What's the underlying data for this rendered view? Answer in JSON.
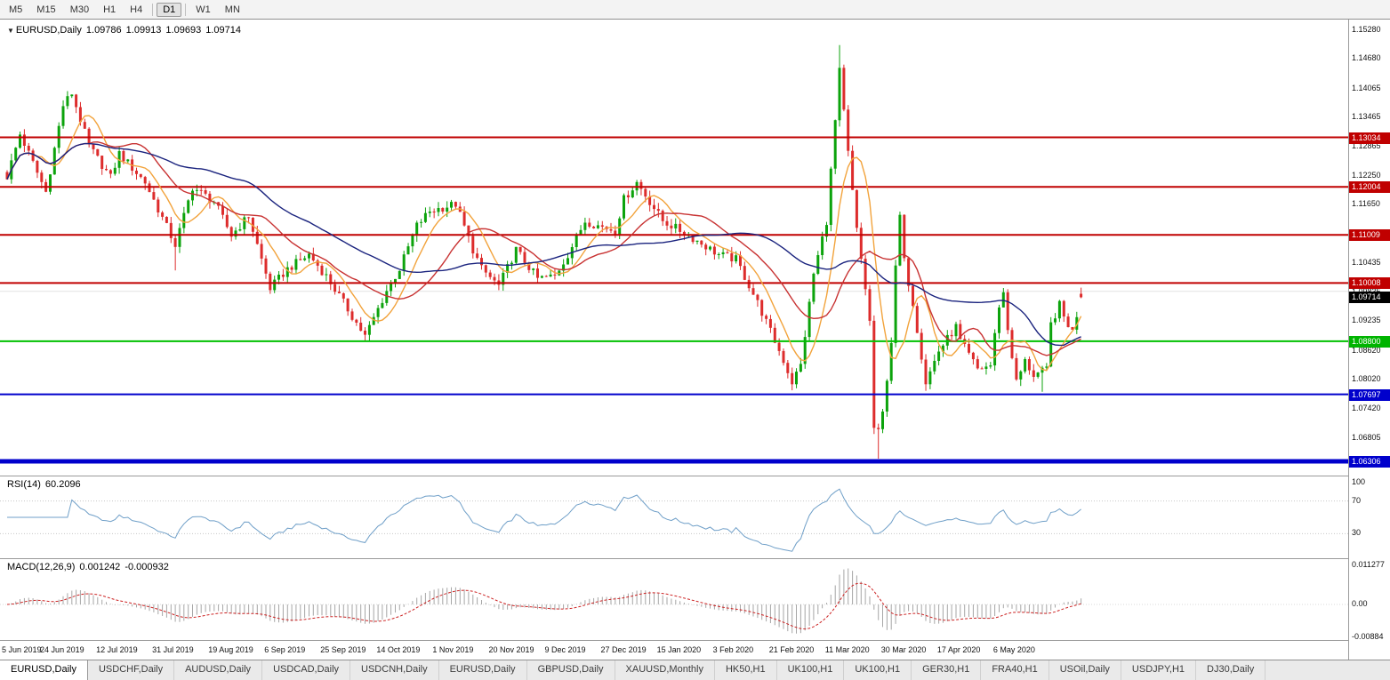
{
  "toolbar": {
    "groups": [
      [
        "M5",
        "M15",
        "M30",
        "H1",
        "H4"
      ],
      [
        "D1"
      ],
      [
        "W1",
        "MN"
      ]
    ],
    "active": "D1"
  },
  "chart_header": {
    "symbol": "EURUSD,Daily",
    "open": "1.09786",
    "high": "1.09913",
    "low": "1.09693",
    "close": "1.09714"
  },
  "price_axis": {
    "ticks": [
      "1.15280",
      "1.14680",
      "1.14065",
      "1.13465",
      "1.12865",
      "1.12250",
      "1.11650",
      "1.11035",
      "1.10435",
      "1.09835",
      "1.09235",
      "1.08620",
      "1.08020",
      "1.07420",
      "1.06805"
    ],
    "badges": [
      {
        "text": "1.13034",
        "price": 1.13034,
        "bg": "#c00000"
      },
      {
        "text": "1.12004",
        "price": 1.12004,
        "bg": "#c00000"
      },
      {
        "text": "1.11009",
        "price": 1.11009,
        "bg": "#c00000"
      },
      {
        "text": "1.10008",
        "price": 1.10008,
        "bg": "#c00000"
      },
      {
        "text": "1.09714",
        "price": 1.09714,
        "bg": "#000000"
      },
      {
        "text": "1.08800",
        "price": 1.088,
        "bg": "#00b400"
      },
      {
        "text": "1.07697",
        "price": 1.07697,
        "bg": "#0000cc"
      },
      {
        "text": "1.06306",
        "price": 1.06306,
        "bg": "#0000cc"
      }
    ]
  },
  "rsi": {
    "label": "RSI(14)",
    "value": "60.2096",
    "period": 14,
    "line_color": "#6f9fc8",
    "levels": [
      70,
      30
    ],
    "level_color": "#c8c8c8",
    "axis_ticks": [
      "100",
      "70",
      "30"
    ]
  },
  "macd": {
    "label": "MACD(12,26,9)",
    "value_main": "0.001242",
    "value_signal": "-0.000932",
    "periods": [
      12,
      26,
      9
    ],
    "axis_ticks": [
      "0.011277",
      "0.00",
      "-0.00884"
    ],
    "y_range": [
      -0.00884,
      0.011277
    ],
    "histogram_color": "#a6a6a6",
    "signal_color": "#cc2222"
  },
  "time_axis": {
    "labels": [
      "5 Jun 2019",
      "24 Jun 2019",
      "12 Jul 2019",
      "31 Jul 2019",
      "19 Aug 2019",
      "6 Sep 2019",
      "25 Sep 2019",
      "14 Oct 2019",
      "1 Nov 2019",
      "20 Nov 2019",
      "9 Dec 2019",
      "27 Dec 2019",
      "15 Jan 2020",
      "3 Feb 2020",
      "21 Feb 2020",
      "11 Mar 2020",
      "30 Mar 2020",
      "17 Apr 2020",
      "6 May 2020"
    ]
  },
  "tabs": {
    "items": [
      "EURUSD,Daily",
      "USDCHF,Daily",
      "AUDUSD,Daily",
      "USDCAD,Daily",
      "USDCNH,Daily",
      "EURUSD,Daily",
      "GBPUSD,Daily",
      "XAUUSD,Monthly",
      "HK50,H1",
      "UK100,H1",
      "UK100,H1",
      "GER30,H1",
      "FRA40,H1",
      "USOil,Daily",
      "USDJPY,H1",
      "DJ30,Daily"
    ],
    "active_index": 0
  },
  "chart_data": {
    "type": "candlestick",
    "symbol": "EURUSD",
    "timeframe": "Daily",
    "x_range": [
      "5 Jun 2019",
      "26 May 2020"
    ],
    "y_range": [
      1.0601,
      1.1548
    ],
    "candle_count": 250,
    "up_color": "#0ca30c",
    "down_color": "#dd2c2c",
    "close_noise": 0.0018,
    "wick_noise": 0.0014,
    "last_candle": {
      "open": 1.09786,
      "high": 1.09913,
      "low": 1.09693,
      "close": 1.09714
    },
    "close_anchors": [
      [
        0,
        1.1222
      ],
      [
        3,
        1.131
      ],
      [
        9,
        1.119
      ],
      [
        13,
        1.137
      ],
      [
        15,
        1.1395
      ],
      [
        19,
        1.1285
      ],
      [
        24,
        1.122
      ],
      [
        26,
        1.127
      ],
      [
        32,
        1.121
      ],
      [
        39,
        1.108
      ],
      [
        43,
        1.12
      ],
      [
        48,
        1.117
      ],
      [
        52,
        1.11
      ],
      [
        56,
        1.114
      ],
      [
        61,
        1.099
      ],
      [
        65,
        1.103
      ],
      [
        70,
        1.106
      ],
      [
        74,
        1.1015
      ],
      [
        78,
        1.096
      ],
      [
        83,
        1.089
      ],
      [
        88,
        1.0985
      ],
      [
        91,
        1.103
      ],
      [
        95,
        1.112
      ],
      [
        98,
        1.115
      ],
      [
        104,
        1.1165
      ],
      [
        108,
        1.107
      ],
      [
        110,
        1.103
      ],
      [
        114,
        1.0995
      ],
      [
        118,
        1.107
      ],
      [
        123,
        1.101
      ],
      [
        127,
        1.1015
      ],
      [
        130,
        1.106
      ],
      [
        134,
        1.113
      ],
      [
        137,
        1.112
      ],
      [
        141,
        1.111
      ],
      [
        143,
        1.1175
      ],
      [
        146,
        1.121
      ],
      [
        152,
        1.113
      ],
      [
        158,
        1.11
      ],
      [
        165,
        1.106
      ],
      [
        169,
        1.105
      ],
      [
        174,
        1.096
      ],
      [
        180,
        1.084
      ],
      [
        182,
        1.0795
      ],
      [
        184,
        1.083
      ],
      [
        187,
        1.102
      ],
      [
        190,
        1.113
      ],
      [
        193,
        1.144
      ],
      [
        195,
        1.127
      ],
      [
        197,
        1.111
      ],
      [
        199,
        1.099
      ],
      [
        200,
        1.092
      ],
      [
        201,
        1.07
      ],
      [
        202,
        1.069
      ],
      [
        203,
        1.073
      ],
      [
        205,
        1.088
      ],
      [
        206,
        1.103
      ],
      [
        207,
        1.114
      ],
      [
        208,
        1.1045
      ],
      [
        210,
        1.096
      ],
      [
        213,
        1.0795
      ],
      [
        216,
        1.086
      ],
      [
        220,
        1.091
      ],
      [
        221,
        1.088
      ],
      [
        225,
        1.0822
      ],
      [
        228,
        1.083
      ],
      [
        230,
        1.0955
      ],
      [
        231,
        1.098
      ],
      [
        232,
        1.0905
      ],
      [
        234,
        1.0795
      ],
      [
        236,
        1.0838
      ],
      [
        238,
        1.081
      ],
      [
        241,
        1.082
      ],
      [
        242,
        1.0915
      ],
      [
        244,
        1.0955
      ],
      [
        245,
        1.093
      ],
      [
        247,
        1.09
      ],
      [
        248,
        1.0935
      ],
      [
        249,
        1.09714
      ]
    ],
    "wick_overrides": [
      {
        "i": 193,
        "high": 1.1495
      },
      {
        "i": 202,
        "low": 1.0636
      },
      {
        "i": 39,
        "low": 1.1027
      },
      {
        "i": 83,
        "low": 1.0879
      },
      {
        "i": 182,
        "low": 1.0778
      },
      {
        "i": 240,
        "low": 1.0775
      }
    ],
    "grid_line": {
      "price": 1.09835,
      "color": "#e4e4e4"
    },
    "horizontal_lines": [
      {
        "price": 1.13034,
        "color": "#c00000",
        "width": 2
      },
      {
        "price": 1.12004,
        "color": "#c00000",
        "width": 2
      },
      {
        "price": 1.11009,
        "color": "#c00000",
        "width": 2
      },
      {
        "price": 1.10008,
        "color": "#c00000",
        "width": 2
      },
      {
        "price": 1.088,
        "color": "#00c000",
        "width": 2
      },
      {
        "price": 1.07697,
        "color": "#0000cc",
        "width": 2
      },
      {
        "price": 1.06306,
        "color": "#0000cc",
        "width": 5
      }
    ],
    "moving_averages": [
      {
        "period": 8,
        "color": "#f2a33c"
      },
      {
        "period": 20,
        "color": "#c83232"
      },
      {
        "period": 45,
        "color": "#1a237e"
      }
    ]
  }
}
